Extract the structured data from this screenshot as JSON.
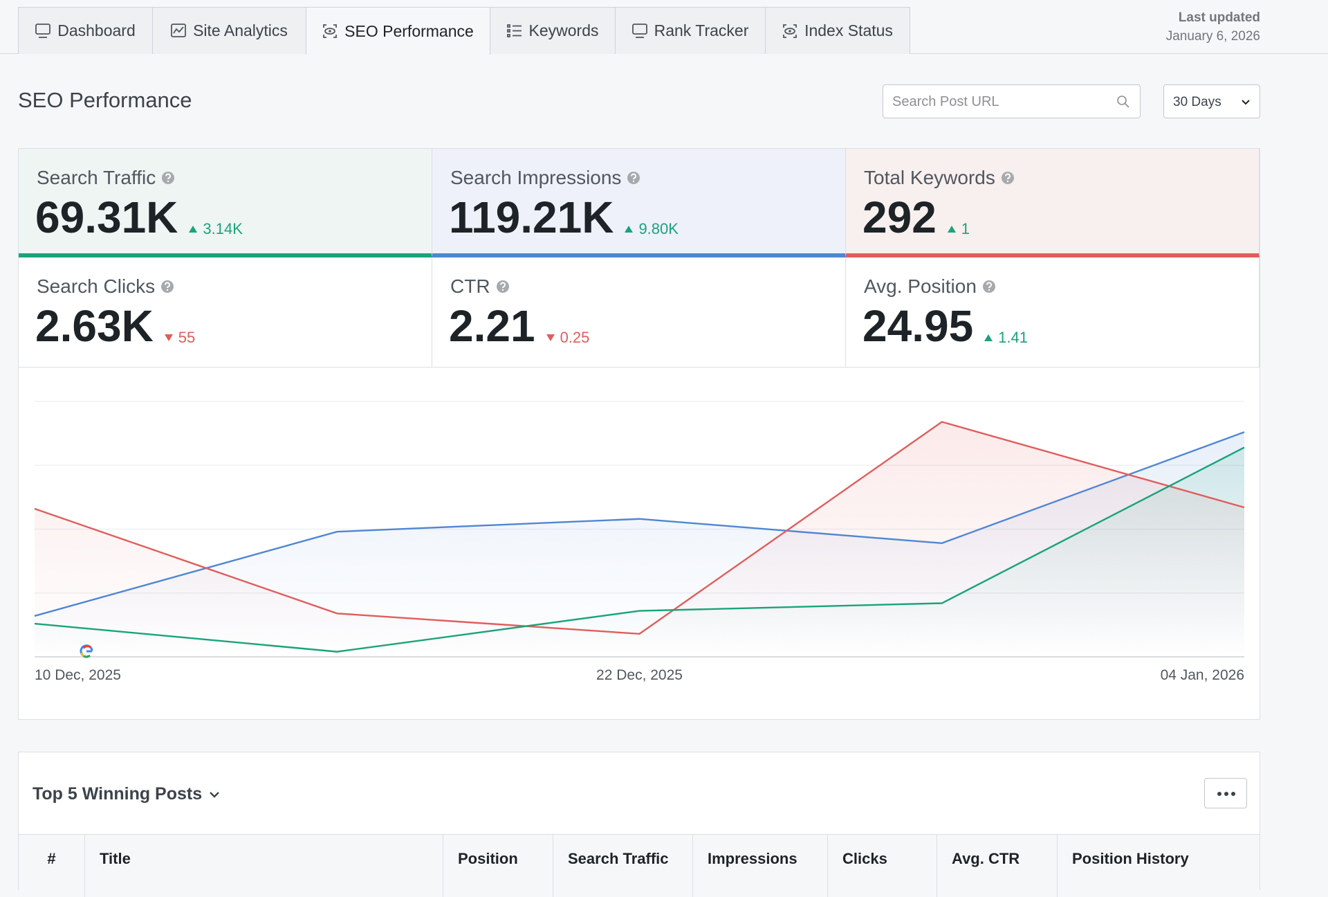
{
  "tabs": [
    {
      "label": "Dashboard",
      "active": false
    },
    {
      "label": "Site Analytics",
      "active": false
    },
    {
      "label": "SEO Performance",
      "active": true
    },
    {
      "label": "Keywords",
      "active": false
    },
    {
      "label": "Rank Tracker",
      "active": false
    },
    {
      "label": "Index Status",
      "active": false
    }
  ],
  "last_updated": {
    "label": "Last updated",
    "date": "January 6, 2026"
  },
  "header": {
    "title": "SEO Performance",
    "search_placeholder": "Search Post URL",
    "range": "30 Days"
  },
  "cards": [
    {
      "label": "Search Traffic",
      "value": "69.31K",
      "change": "3.14K",
      "trend": "up",
      "accent": "#1aa37a",
      "tint": "#eef5f3"
    },
    {
      "label": "Search Impressions",
      "value": "119.21K",
      "change": "9.80K",
      "trend": "up",
      "accent": "#4f86d3",
      "tint": "#eef1f9"
    },
    {
      "label": "Total Keywords",
      "value": "292",
      "change": "1",
      "trend": "up",
      "accent": "#e05d5d",
      "tint": "#f8efef"
    },
    {
      "label": "Search Clicks",
      "value": "2.63K",
      "change": "55",
      "trend": "down"
    },
    {
      "label": "CTR",
      "value": "2.21",
      "change": "0.25",
      "trend": "down"
    },
    {
      "label": "Avg. Position",
      "value": "24.95",
      "change": "1.41",
      "trend": "up"
    }
  ],
  "chart_data": {
    "type": "line",
    "categories": [
      "10 Dec, 2025",
      null,
      "22 Dec, 2025",
      null,
      "04 Jan, 2026"
    ],
    "ylim": [
      0,
      100
    ],
    "yticks": [
      0,
      25,
      50,
      75,
      100
    ],
    "grid": true,
    "series": [
      {
        "color": "#4f86d3",
        "values": [
          16,
          49,
          54,
          44.5,
          88
        ]
      },
      {
        "color": "#e05d5d",
        "values": [
          58,
          17,
          9,
          92,
          58.5
        ]
      },
      {
        "color": "#1aa37a",
        "values": [
          13,
          2,
          18,
          21,
          82
        ]
      }
    ]
  },
  "table": {
    "title": "Top 5 Winning Posts",
    "columns": [
      "#",
      "Title",
      "Position",
      "Search Traffic",
      "Impressions",
      "Clicks",
      "Avg. CTR",
      "Position History"
    ]
  }
}
